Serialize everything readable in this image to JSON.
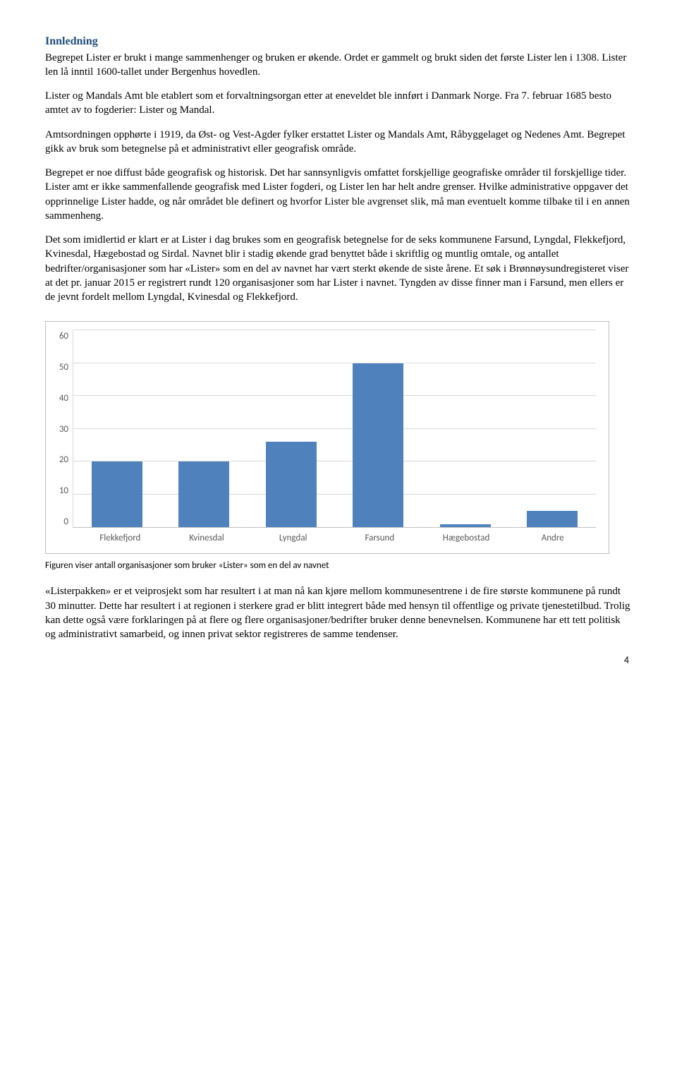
{
  "heading": "Innledning",
  "paragraphs": [
    "Begrepet Lister er brukt i mange sammenhenger og bruken er økende. Ordet er gammelt og brukt siden det første Lister len i 1308. Lister len lå inntil 1600-tallet under Bergenhus hovedlen.",
    "Lister og Mandals Amt ble etablert som et forvaltningsorgan etter at eneveldet ble innført i Danmark Norge. Fra 7. februar 1685 besto amtet av to fogderier: Lister og Mandal.",
    "Amtsordningen opphørte i 1919, da Øst- og Vest-Agder fylker erstattet Lister og Mandals Amt, Råbyggelaget og Nedenes Amt. Begrepet gikk av bruk som betegnelse på et administrativt eller geografisk område.",
    "Begrepet er noe diffust både geografisk og historisk. Det har sannsynligvis omfattet forskjellige geografiske områder til forskjellige tider. Lister amt er ikke sammenfallende geografisk med Lister fogderi, og Lister len har helt andre grenser. Hvilke administrative oppgaver det opprinnelige Lister hadde, og når området ble definert og hvorfor Lister ble avgrenset slik, må man eventuelt komme tilbake til i en annen sammenheng.",
    "Det som imidlertid er klart er at Lister i dag brukes som en geografisk betegnelse for de seks kommunene Farsund, Lyngdal, Flekkefjord, Kvinesdal, Hægebostad og Sirdal. Navnet blir i stadig økende grad benyttet både i skriftlig og muntlig omtale, og antallet bedrifter/organisasjoner som har «Lister» som en del av navnet har vært sterkt økende de siste årene.  Et søk i Brønnøysundregisteret viser at det pr. januar 2015 er registrert rundt 120 organisasjoner som har Lister i navnet. Tyngden av disse finner man i Farsund, men ellers er de jevnt fordelt mellom Lyngdal, Kvinesdal og Flekkefjord."
  ],
  "chart": {
    "type": "bar",
    "categories": [
      "Flekkefjord",
      "Kvinesdal",
      "Lyngdal",
      "Farsund",
      "Hægebostad",
      "Andre"
    ],
    "values": [
      20,
      20,
      26,
      50,
      1,
      5
    ],
    "ymax": 60,
    "ytick_step": 10,
    "yticks": [
      "60",
      "50",
      "40",
      "30",
      "20",
      "10",
      "0"
    ],
    "bar_color": "#4F81BD",
    "grid_color": "#d9d9d9",
    "axis_text_color": "#595959"
  },
  "caption": "Figuren viser antall organisasjoner som bruker «Lister» som en del av navnet",
  "paragraphs_after": [
    " «Listerpakken» er et veiprosjekt som har resultert i at man nå kan kjøre mellom kommunesentrene i de fire største kommunene på rundt 30 minutter.  Dette har resultert i at regionen i sterkere grad er blitt integrert både med hensyn til offentlige og private tjenestetilbud.  Trolig kan dette også være forklaringen på at flere og flere organisasjoner/bedrifter bruker denne benevnelsen.   Kommunene har ett tett politisk og administrativt samarbeid, og innen privat sektor registreres de samme tendenser."
  ],
  "page_number": "4"
}
